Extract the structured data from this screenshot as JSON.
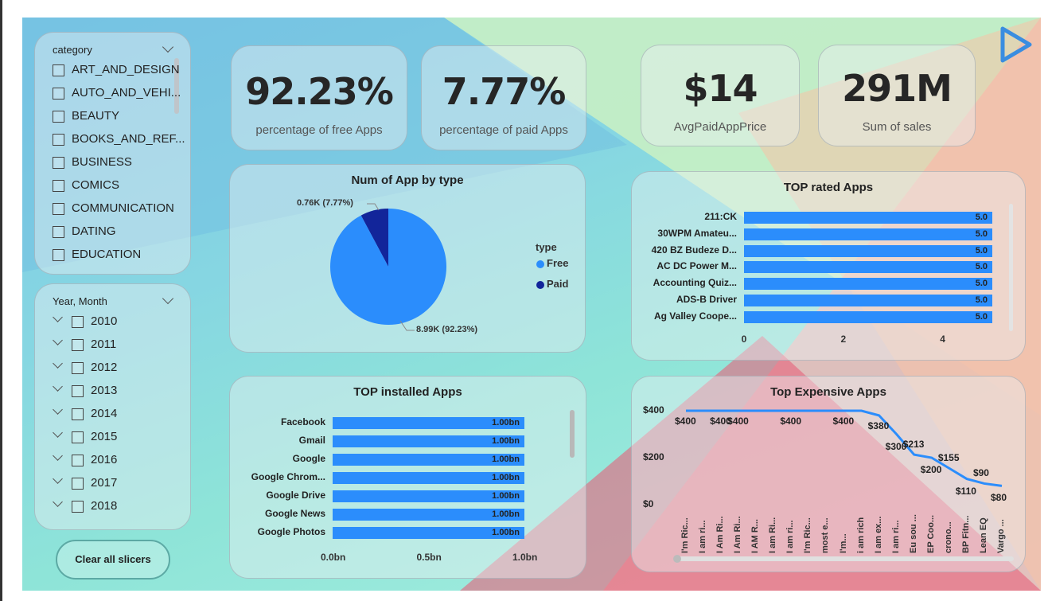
{
  "colors": {
    "accent": "#2b8dfc",
    "paid": "#12259a",
    "free": "#2b8dfc"
  },
  "kpis": {
    "free_pct": {
      "value": "92.23%",
      "label": "percentage of free Apps"
    },
    "paid_pct": {
      "value": "7.77%",
      "label": "percentage of paid Apps"
    },
    "avg_price": {
      "value": "$14",
      "label": "AvgPaidAppPrice"
    },
    "sales": {
      "value": "291M",
      "label": "Sum of sales"
    }
  },
  "category_slicer": {
    "title": "category",
    "items": [
      "ART_AND_DESIGN",
      "AUTO_AND_VEHI...",
      "BEAUTY",
      "BOOKS_AND_REF...",
      "BUSINESS",
      "COMICS",
      "COMMUNICATION",
      "DATING",
      "EDUCATION"
    ]
  },
  "year_slicer": {
    "title": "Year, Month",
    "items": [
      "2010",
      "2011",
      "2012",
      "2013",
      "2014",
      "2015",
      "2016",
      "2017",
      "2018"
    ]
  },
  "clear_button": {
    "label": "Clear all slicers"
  },
  "pie": {
    "title": "Num of App by type",
    "legend_title": "type",
    "paid_label": "0.76K (7.77%)",
    "free_label": "8.99K (92.23%)"
  },
  "top_rated": {
    "title": "TOP rated Apps"
  },
  "top_installed": {
    "title": "TOP installed Apps"
  },
  "top_expensive": {
    "title": "Top Expensive Apps",
    "y_ticks": [
      "$400",
      "$200",
      "$0"
    ]
  },
  "chart_data": [
    {
      "type": "pie",
      "title": "Num of App by type",
      "legend_title": "type",
      "categories": [
        "Free",
        "Paid"
      ],
      "values": [
        8990,
        760
      ],
      "percent": [
        92.23,
        7.77
      ]
    },
    {
      "type": "bar",
      "orientation": "horizontal",
      "title": "TOP rated Apps",
      "categories": [
        "211:CK",
        "30WPM Amateu...",
        "420 BZ Budeze D...",
        "AC DC Power M...",
        "Accounting Quiz...",
        "ADS-B Driver",
        "Ag Valley Coope..."
      ],
      "values": [
        5.0,
        5.0,
        5.0,
        5.0,
        5.0,
        5.0,
        5.0
      ],
      "value_labels": [
        "5.0",
        "5.0",
        "5.0",
        "5.0",
        "5.0",
        "5.0",
        "5.0"
      ],
      "xlim": [
        0,
        5
      ],
      "x_ticks": [
        "0",
        "2",
        "4"
      ]
    },
    {
      "type": "bar",
      "orientation": "horizontal",
      "title": "TOP installed Apps",
      "categories": [
        "Facebook",
        "Gmail",
        "Google",
        "Google Chrom...",
        "Google Drive",
        "Google News",
        "Google Photos"
      ],
      "values": [
        1.0,
        1.0,
        1.0,
        1.0,
        1.0,
        1.0,
        1.0
      ],
      "value_labels": [
        "1.00bn",
        "1.00bn",
        "1.00bn",
        "1.00bn",
        "1.00bn",
        "1.00bn",
        "1.00bn"
      ],
      "xlim": [
        0,
        1.0
      ],
      "x_ticks": [
        "0.0bn",
        "0.5bn",
        "1.0bn"
      ]
    },
    {
      "type": "line",
      "title": "Top Expensive Apps",
      "categories": [
        "I'm Ric...",
        "I am ri...",
        "I Am Ri...",
        "I Am Ri...",
        "I AM R...",
        "I am Ri...",
        "I am ri...",
        "I'm Ric...",
        "most e...",
        "I'm...",
        "i am rich",
        "I am ex...",
        "I am ri...",
        "Eu sou ...",
        "EP Coo...",
        "crono...",
        "BP Fitn...",
        "Lean EQ",
        "Vargo ..."
      ],
      "values": [
        400,
        400,
        400,
        400,
        400,
        400,
        400,
        400,
        400,
        400,
        400,
        380,
        300,
        213,
        200,
        155,
        110,
        90,
        80
      ],
      "point_labels": [
        "$400",
        "",
        "$400",
        "$400",
        "",
        "",
        "$400",
        "",
        "",
        "$400",
        "",
        "$380",
        "$300",
        "$213",
        "$200",
        "$155",
        "$110",
        "$90",
        "$80"
      ],
      "ylim": [
        0,
        400
      ],
      "y_ticks": [
        "$400",
        "$200",
        "$0"
      ]
    }
  ]
}
